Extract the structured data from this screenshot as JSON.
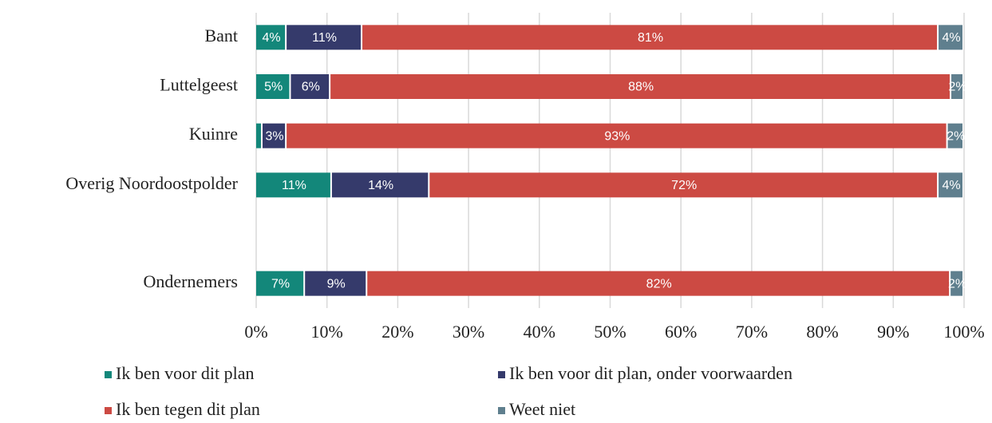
{
  "chart_data": {
    "type": "stacked-bar-horizontal",
    "categories": [
      "Bant",
      "Luttelgeest",
      "Kuinre",
      "Overig Noordoostpolder",
      null,
      "Ondernemers"
    ],
    "series": [
      {
        "name": "Ik ben voor dit plan",
        "color": "#13877a",
        "values": [
          4.3,
          4.9,
          0.9,
          10.7,
          null,
          6.9
        ],
        "value_labels": [
          "4%",
          "5%",
          null,
          "11%",
          null,
          "7%"
        ]
      },
      {
        "name": "Ik ben voor dit plan, onder voorwaarden",
        "color": "#353a6b",
        "values": [
          10.7,
          5.6,
          3.4,
          13.8,
          null,
          8.8
        ],
        "value_labels": [
          "11%",
          "6%",
          "3%",
          "14%",
          null,
          "9%"
        ]
      },
      {
        "name": "Ik ben tegen dit plan",
        "color": "#cc4a43",
        "values": [
          81.4,
          87.7,
          93.4,
          71.9,
          null,
          82.4
        ],
        "value_labels": [
          "81%",
          "88%",
          "93%",
          "72%",
          null,
          "82%"
        ]
      },
      {
        "name": "Weet niet",
        "color": "#5f7f8e",
        "values": [
          3.6,
          1.8,
          2.3,
          3.6,
          null,
          1.9
        ],
        "value_labels": [
          "4%",
          "2%",
          "2%",
          "4%",
          null,
          "2%"
        ]
      }
    ],
    "xlim": [
      0,
      100
    ],
    "xticks": [
      {
        "value": 0,
        "label": "0%"
      },
      {
        "value": 10,
        "label": "10%"
      },
      {
        "value": 20,
        "label": "20%"
      },
      {
        "value": 30,
        "label": "30%"
      },
      {
        "value": 40,
        "label": "40%"
      },
      {
        "value": 50,
        "label": "50%"
      },
      {
        "value": 60,
        "label": "60%"
      },
      {
        "value": 70,
        "label": "70%"
      },
      {
        "value": 80,
        "label": "80%"
      },
      {
        "value": 90,
        "label": "90%"
      },
      {
        "value": 100,
        "label": "100%"
      }
    ],
    "grid": true,
    "legend": "bottom"
  }
}
